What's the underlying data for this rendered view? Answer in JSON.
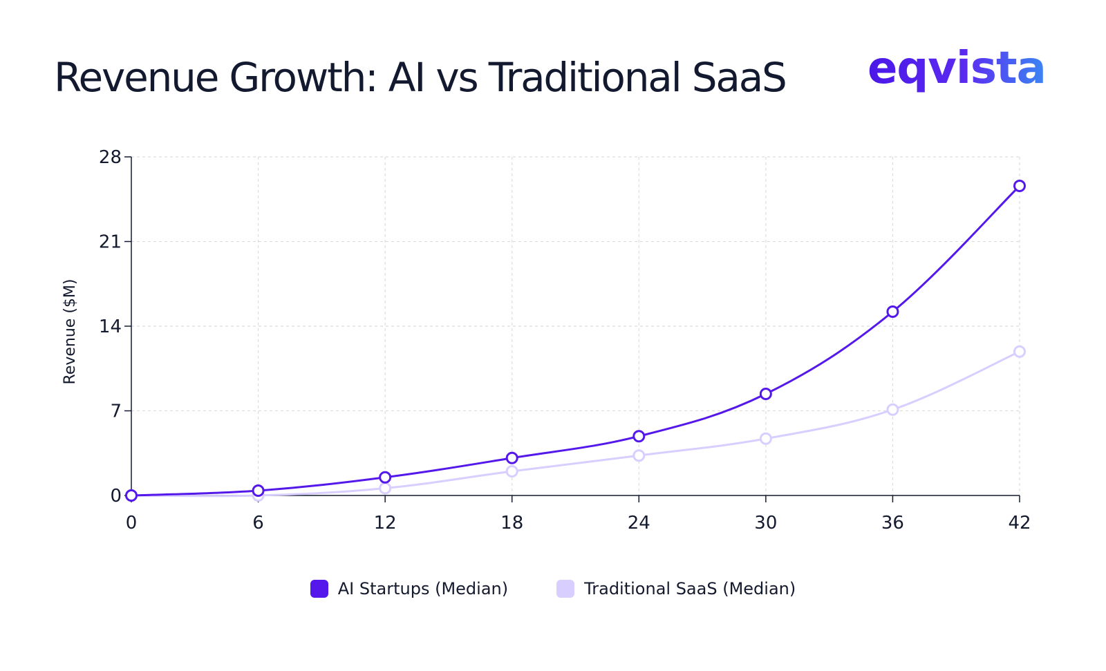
{
  "header": {
    "title": "Revenue Growth: AI vs Traditional SaaS",
    "logo_text": "eqvista"
  },
  "colors": {
    "ai": "#5419ea",
    "saas": "#d8ceff",
    "grid": "#dcdcdc",
    "axis": "#141a2e"
  },
  "chart_data": {
    "type": "line",
    "title": "Revenue Growth: AI vs Traditional SaaS",
    "xlabel": "",
    "ylabel": "Revenue ($M)",
    "x": [
      0,
      6,
      12,
      18,
      24,
      30,
      36,
      42
    ],
    "xlim": [
      0,
      42
    ],
    "ylim": [
      0,
      28
    ],
    "xticks": [
      "0",
      "6",
      "12",
      "18",
      "24",
      "30",
      "36",
      "42"
    ],
    "yticks": [
      "0",
      "7",
      "14",
      "21",
      "28"
    ],
    "grid": true,
    "legend_position": "bottom-center",
    "series": [
      {
        "name": "AI Startups (Median)",
        "values": [
          0,
          0.4,
          1.5,
          3.1,
          4.9,
          8.4,
          15.2,
          25.6
        ]
      },
      {
        "name": "Traditional SaaS (Median)",
        "values": [
          0,
          0,
          0.6,
          2.0,
          3.3,
          4.7,
          7.1,
          11.9
        ]
      }
    ]
  }
}
